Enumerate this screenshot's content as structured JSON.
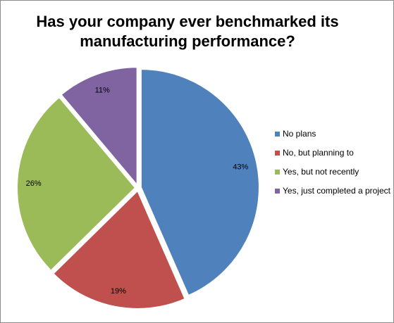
{
  "chart_data": {
    "type": "pie",
    "title": [
      "Has your company ever benchmarked its",
      "manufacturing performance?"
    ],
    "legend_position": "right",
    "slices": [
      {
        "label": "No plans",
        "value": 43,
        "display": "43%",
        "color": "#4f81bd"
      },
      {
        "label": "No, but planning to",
        "value": 19,
        "display": "19%",
        "color": "#c0504d"
      },
      {
        "label": "Yes, but not recently",
        "value": 26,
        "display": "26%",
        "color": "#9bbb59"
      },
      {
        "label": "Yes, just completed a project",
        "value": 11,
        "display": "11%",
        "color": "#8064a2"
      }
    ]
  }
}
